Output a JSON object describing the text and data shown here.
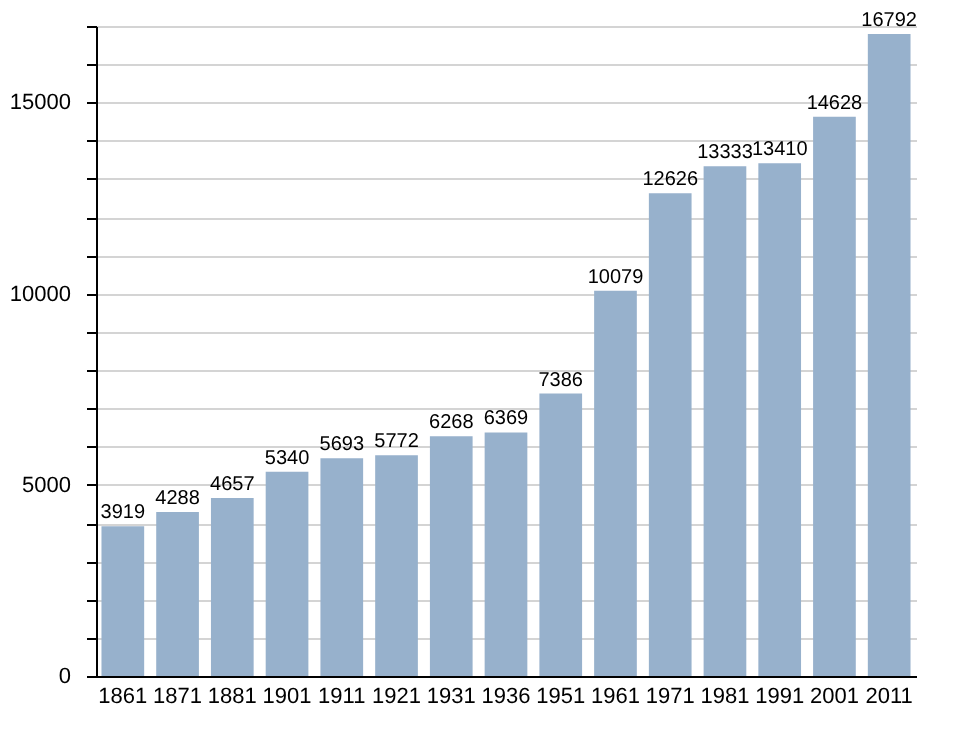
{
  "chart_data": {
    "type": "bar",
    "categories": [
      "1861",
      "1871",
      "1881",
      "1901",
      "1911",
      "1921",
      "1931",
      "1936",
      "1951",
      "1961",
      "1971",
      "1981",
      "1991",
      "2001",
      "2011"
    ],
    "values": [
      3919,
      4288,
      4657,
      5340,
      5693,
      5772,
      6268,
      6369,
      7386,
      10079,
      12626,
      13333,
      13410,
      14628,
      16792
    ],
    "color": "#97b1cc",
    "ylim": [
      0,
      17000
    ],
    "yticks": [
      0,
      {
        "value": 1000,
        "label": null
      },
      {
        "value": 2000,
        "label": null
      },
      {
        "value": 3000,
        "label": null
      },
      {
        "value": 4000,
        "label": null
      },
      5000,
      {
        "value": 6000,
        "label": null
      },
      {
        "value": 7000,
        "label": null
      },
      {
        "value": 8000,
        "label": null
      },
      {
        "value": 9000,
        "label": null
      },
      10000,
      {
        "value": 11000,
        "label": null
      },
      {
        "value": 12000,
        "label": null
      },
      {
        "value": 13000,
        "label": null
      },
      {
        "value": 14000,
        "label": null
      },
      15000,
      {
        "value": 16000,
        "label": null
      },
      {
        "value": 17000,
        "label": null
      }
    ],
    "grid": "y",
    "data_labels": true
  }
}
